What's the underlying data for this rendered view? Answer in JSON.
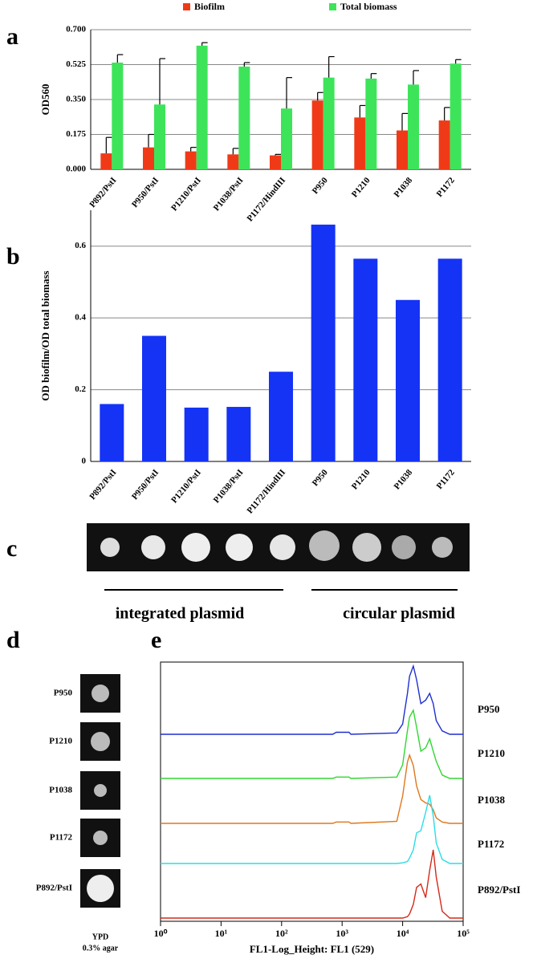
{
  "chart_data": [
    {
      "type": "bar",
      "panel": "a",
      "ylabel": "OD560",
      "categories": [
        "P892/PstI",
        "P950/PstI",
        "P1210/PstI",
        "P1038/PstI",
        "P1172/HindIII",
        "P950",
        "P1210",
        "P1038",
        "P1172"
      ],
      "series": [
        {
          "name": "Biofilm",
          "color": "#f03a17",
          "values": [
            0.08,
            0.11,
            0.09,
            0.075,
            0.07,
            0.345,
            0.26,
            0.195,
            0.245
          ],
          "errors": [
            0.08,
            0.065,
            0.02,
            0.03,
            0.005,
            0.04,
            0.06,
            0.085,
            0.065
          ]
        },
        {
          "name": "Total biomass",
          "color": "#3de45a",
          "values": [
            0.535,
            0.325,
            0.62,
            0.515,
            0.305,
            0.46,
            0.455,
            0.425,
            0.53
          ],
          "errors": [
            0.04,
            0.23,
            0.015,
            0.02,
            0.155,
            0.105,
            0.025,
            0.07,
            0.02
          ]
        }
      ],
      "ylim": [
        0,
        0.7
      ],
      "yticks": [
        {
          "value": 0,
          "label": "0.000"
        },
        {
          "value": 0.175,
          "label": "0.175"
        },
        {
          "value": 0.35,
          "label": "0.350"
        },
        {
          "value": 0.525,
          "label": "0.525"
        },
        {
          "value": 0.7,
          "label": "0.700"
        }
      ],
      "grid": true,
      "legend": "top"
    },
    {
      "type": "bar",
      "panel": "b",
      "ylabel": "OD biofilm/OD total biomass",
      "categories": [
        "P892/PstI",
        "P950/PstI",
        "P1210/PstI",
        "P1038/PstI",
        "P1172/HindIII",
        "P950",
        "P1210",
        "P1038",
        "P1172"
      ],
      "series": [
        {
          "color": "#1433f5",
          "values": [
            0.16,
            0.35,
            0.15,
            0.152,
            0.25,
            0.66,
            0.565,
            0.45,
            0.565
          ]
        }
      ],
      "ylim": [
        0,
        0.7
      ],
      "yticks": [
        0,
        0.2,
        0.4,
        0.6
      ],
      "grid": true
    },
    {
      "type": "line",
      "panel": "e",
      "xlabel": "FL1-Log_Height: FL1 (529)",
      "xscale": "log",
      "x": [
        1,
        700,
        800,
        1300,
        1400,
        8000,
        10000,
        12000,
        13000,
        15000,
        17000,
        20000,
        24000,
        28000,
        32000,
        36000,
        45000,
        60000,
        100000
      ],
      "series": [
        {
          "name": "P950",
          "color": "#1f2fd0",
          "values": [
            0,
            0,
            3,
            3,
            0,
            2,
            15,
            60,
            85,
            100,
            80,
            45,
            50,
            60,
            45,
            20,
            5,
            0,
            0
          ]
        },
        {
          "name": "P1210",
          "color": "#33d633",
          "values": [
            0,
            0,
            2,
            2,
            0,
            2,
            20,
            70,
            90,
            100,
            75,
            40,
            45,
            58,
            40,
            25,
            5,
            0,
            0
          ]
        },
        {
          "name": "P1038",
          "color": "#e0761c",
          "values": [
            0,
            0,
            2,
            2,
            0,
            3,
            40,
            90,
            100,
            85,
            55,
            35,
            30,
            28,
            20,
            8,
            2,
            0,
            0
          ]
        },
        {
          "name": "P1172",
          "color": "#29dde8",
          "values": [
            0,
            0,
            0,
            0,
            0,
            0,
            1,
            3,
            8,
            20,
            45,
            48,
            75,
            100,
            70,
            30,
            6,
            0,
            0
          ]
        },
        {
          "name": "P892/PstI",
          "color": "#d42a1a",
          "values": [
            0,
            0,
            0,
            0,
            0,
            0,
            0,
            2,
            6,
            20,
            45,
            50,
            30,
            70,
            100,
            60,
            10,
            0,
            0
          ]
        }
      ],
      "xlim": [
        1,
        100000
      ],
      "xticks": [
        {
          "value": 1,
          "label": "10⁰"
        },
        {
          "value": 10,
          "label": "10¹"
        },
        {
          "value": 100,
          "label": "10²"
        },
        {
          "value": 1000,
          "label": "10³"
        },
        {
          "value": 10000,
          "label": "10⁴"
        },
        {
          "value": 100000,
          "label": "10⁵"
        }
      ]
    }
  ],
  "panel_c": {
    "letter": "c",
    "groups": [
      "integrated plasmid",
      "circular plasmid"
    ]
  },
  "panel_d": {
    "letter": "d",
    "labels": [
      "P950",
      "P1210",
      "P1038",
      "P1172",
      "P892/PstI"
    ],
    "caption": [
      "YPD",
      "0.3% agar"
    ]
  }
}
